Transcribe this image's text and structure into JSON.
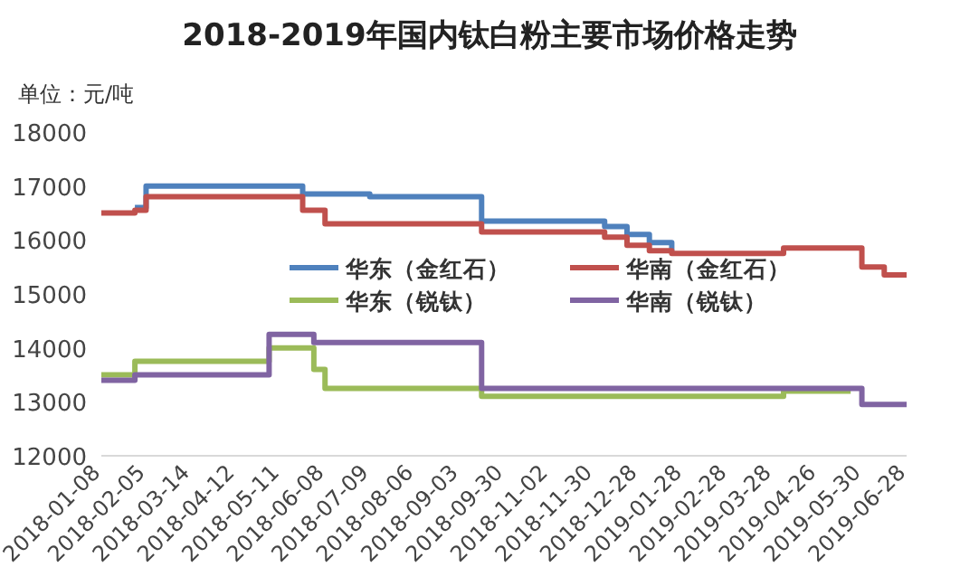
{
  "chart_data": {
    "type": "step",
    "title": "2018-2019年国内钛白粉主要市场价格走势",
    "ylabel": "单位：元/吨",
    "categories": [
      "2018-01-08",
      null,
      null,
      null,
      "2018-02-05",
      null,
      null,
      null,
      "2018-03-14",
      null,
      null,
      null,
      "2018-04-12",
      null,
      null,
      null,
      "2018-05-11",
      null,
      null,
      null,
      "2018-06-08",
      null,
      null,
      null,
      "2018-07-09",
      null,
      null,
      null,
      "2018-08-06",
      null,
      null,
      null,
      "2018-09-03",
      null,
      null,
      null,
      "2018-09-30",
      null,
      null,
      null,
      "2018-11-02",
      null,
      null,
      null,
      "2018-11-30",
      null,
      null,
      null,
      "2018-12-28",
      null,
      null,
      null,
      "2019-01-28",
      null,
      null,
      null,
      "2019-02-28",
      null,
      null,
      null,
      "2019-03-28",
      null,
      null,
      null,
      "2019-04-26",
      null,
      null,
      null,
      "2019-05-30",
      null,
      null,
      null,
      "2019-06-28"
    ],
    "ylim": [
      12000,
      18000
    ],
    "yticks": [
      12000,
      13000,
      14000,
      15000,
      16000,
      17000,
      18000
    ],
    "legend": "center",
    "series": [
      {
        "name": "华东（金红石）",
        "color": "#4f81bd",
        "values": [
          null,
          null,
          null,
          16600,
          17000,
          17000,
          17000,
          17000,
          17000,
          17000,
          17000,
          17000,
          17000,
          17000,
          17000,
          17000,
          17000,
          17000,
          16850,
          16850,
          16850,
          16850,
          16850,
          16850,
          16800,
          16800,
          16800,
          16800,
          16800,
          16800,
          16800,
          16800,
          16800,
          16800,
          16350,
          16350,
          16350,
          16350,
          16350,
          16350,
          16350,
          16350,
          16350,
          16350,
          16350,
          16250,
          16250,
          16100,
          16100,
          15950,
          15950,
          15800,
          null,
          null,
          null,
          null,
          null,
          null,
          null,
          null,
          null,
          null,
          null,
          null,
          null,
          null,
          null,
          null,
          null,
          null,
          null,
          null,
          null
        ]
      },
      {
        "name": "华南（金红石）",
        "color": "#c0504d",
        "values": [
          16500,
          16500,
          16500,
          16550,
          16800,
          16800,
          16800,
          16800,
          16800,
          16800,
          16800,
          16800,
          16800,
          16800,
          16800,
          16800,
          16800,
          16800,
          16550,
          16550,
          16300,
          16300,
          16300,
          16300,
          16300,
          16300,
          16300,
          16300,
          16300,
          16300,
          16300,
          16300,
          16300,
          16300,
          16150,
          16150,
          16150,
          16150,
          16150,
          16150,
          16150,
          16150,
          16150,
          16150,
          16150,
          16050,
          16050,
          15900,
          15900,
          15800,
          15800,
          15750,
          15750,
          15750,
          15750,
          15750,
          15750,
          15750,
          15750,
          15750,
          15750,
          15850,
          15850,
          15850,
          15850,
          15850,
          15850,
          15850,
          15500,
          15500,
          15350,
          15350,
          15350
        ]
      },
      {
        "name": "华东（锐钛）",
        "color": "#9bbb59",
        "values": [
          13500,
          13500,
          13500,
          13750,
          13750,
          13750,
          13750,
          13750,
          13750,
          13750,
          13750,
          13750,
          13750,
          13750,
          13750,
          14000,
          14000,
          14000,
          14000,
          13600,
          13250,
          13250,
          13250,
          13250,
          13250,
          13250,
          13250,
          13250,
          13250,
          13250,
          13250,
          13250,
          13250,
          13250,
          13100,
          13100,
          13100,
          13100,
          13100,
          13100,
          13100,
          13100,
          13100,
          13100,
          13100,
          13100,
          13100,
          13100,
          13100,
          13100,
          13100,
          13100,
          13100,
          13100,
          13100,
          13100,
          13100,
          13100,
          13100,
          13100,
          13100,
          13200,
          13200,
          13200,
          13200,
          13200,
          13200,
          13200,
          null,
          null,
          null,
          null,
          null
        ]
      },
      {
        "name": "华南（锐钛）",
        "color": "#8064a2",
        "values": [
          13400,
          13400,
          13400,
          13500,
          13500,
          13500,
          13500,
          13500,
          13500,
          13500,
          13500,
          13500,
          13500,
          13500,
          13500,
          14250,
          14250,
          14250,
          14250,
          14100,
          14100,
          14100,
          14100,
          14100,
          14100,
          14100,
          14100,
          14100,
          14100,
          14100,
          14100,
          14100,
          14100,
          14100,
          13250,
          13250,
          13250,
          13250,
          13250,
          13250,
          13250,
          13250,
          13250,
          13250,
          13250,
          13250,
          13250,
          13250,
          13250,
          13250,
          13250,
          13250,
          13250,
          13250,
          13250,
          13250,
          13250,
          13250,
          13250,
          13250,
          13250,
          13250,
          13250,
          13250,
          13250,
          13250,
          13250,
          13250,
          12950,
          12950,
          12950,
          12950,
          12950
        ]
      }
    ]
  }
}
